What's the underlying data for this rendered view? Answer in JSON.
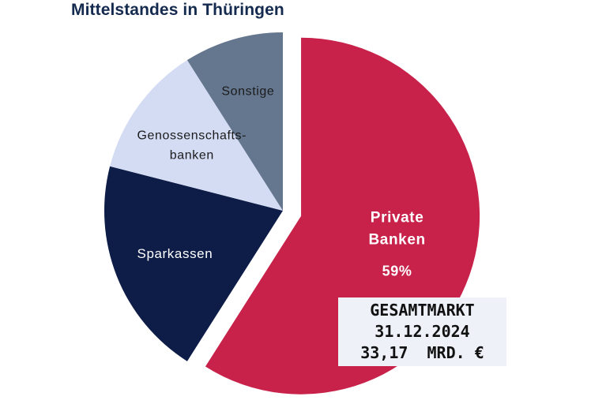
{
  "chart_data": {
    "type": "pie",
    "title": "Mittelstandes in Thüringen",
    "slices": [
      {
        "name": "Private Banken",
        "label_lines": [
          "Private",
          "Banken"
        ],
        "value_label": "59%",
        "value": 59,
        "color": "#c8224b",
        "text_color": "#ffffff",
        "exploded": true
      },
      {
        "name": "Sparkassen",
        "label_lines": [
          "Sparkassen"
        ],
        "value": 20,
        "color": "#0e1d47",
        "text_color": "#ffffff",
        "exploded": false
      },
      {
        "name": "Genossenschaftsbanken",
        "label_lines": [
          "Genossenschafts-",
          "banken"
        ],
        "value": 12,
        "color": "#d4dcf4",
        "text_color": "#1b1b1b",
        "exploded": false
      },
      {
        "name": "Sonstige",
        "label_lines": [
          "Sonstige"
        ],
        "value": 9,
        "color": "#65778f",
        "text_color": "#1b1b1b",
        "exploded": false
      }
    ],
    "start_angle": "12 o'clock",
    "direction": "clockwise",
    "legend": "none"
  },
  "info_box": {
    "line1": "GESAMTMARKT",
    "line2": "31.12.2024",
    "line3": "33,17  MRD. €"
  }
}
